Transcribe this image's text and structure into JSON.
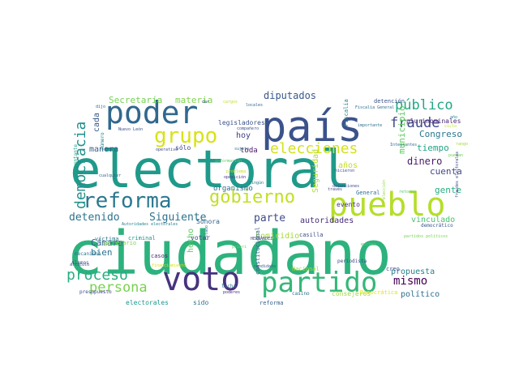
{
  "words": [
    {
      "text": "ciudadano",
      "color": "#2db27d"
    },
    {
      "text": "electoral",
      "color": "#1f9a8a"
    },
    {
      "text": "país",
      "color": "#3b528b"
    },
    {
      "text": "pueblo",
      "color": "#b5de2b"
    },
    {
      "text": "poder",
      "color": "#31688e"
    },
    {
      "text": "voto",
      "color": "#46337e"
    },
    {
      "text": "partido",
      "color": "#35b779"
    },
    {
      "text": "reforma",
      "color": "#2a788e"
    },
    {
      "text": "gobierno",
      "color": "#c2df23"
    },
    {
      "text": "grupo",
      "color": "#d8e219"
    },
    {
      "text": "democracia",
      "color": "#21918c"
    },
    {
      "text": "fraude",
      "color": "#3e4989"
    },
    {
      "text": "público",
      "color": "#22a884"
    },
    {
      "text": "elecciones",
      "color": "#d2e21b"
    },
    {
      "text": "proceso",
      "color": "#27ad81"
    },
    {
      "text": "persona",
      "color": "#7ad151"
    },
    {
      "text": "Siguiente",
      "color": "#2c728e"
    },
    {
      "text": "detenido",
      "color": "#2c728e"
    },
    {
      "text": "parte",
      "color": "#3e4c8a"
    },
    {
      "text": "diputados",
      "color": "#38588c"
    },
    {
      "text": "mismo",
      "color": "#440154"
    },
    {
      "text": "municipio",
      "color": "#5ec962"
    },
    {
      "text": "Secretaría",
      "color": "#77d153"
    },
    {
      "text": "materia",
      "color": "#7fd34e"
    },
    {
      "text": "Congreso",
      "color": "#2a778e"
    },
    {
      "text": "tiempo",
      "color": "#20a386"
    },
    {
      "text": "dinero",
      "color": "#481a6c"
    },
    {
      "text": "cuenta",
      "color": "#3f4788"
    },
    {
      "text": "gente",
      "color": "#28ae80"
    },
    {
      "text": "homicidio",
      "color": "#a5db36"
    },
    {
      "text": "autoridades",
      "color": "#472d7b"
    },
    {
      "text": "vinculado",
      "color": "#4ac16d"
    },
    {
      "text": "propuesta",
      "color": "#26828e"
    },
    {
      "text": "político",
      "color": "#2d708e"
    },
    {
      "text": "Cámara",
      "color": "#365c8d"
    },
    {
      "text": "bien",
      "color": "#2c728e"
    },
    {
      "text": "hecho",
      "color": "#5ec962"
    },
    {
      "text": "manera",
      "color": "#355f8d"
    },
    {
      "text": "cada",
      "color": "#38588c"
    },
    {
      "text": "hoy",
      "color": "#433e85"
    },
    {
      "text": "toda",
      "color": "#471365"
    },
    {
      "text": "legisladores",
      "color": "#3b528b"
    },
    {
      "text": "plurinominales",
      "color": "#482677"
    },
    {
      "text": "detención",
      "color": "#3b528b"
    },
    {
      "text": "Seguridad",
      "color": "#b8de29"
    },
    {
      "text": "años",
      "color": "#c0df25"
    },
    {
      "text": "organismo",
      "color": "#2e6f8e"
    },
    {
      "text": "evento",
      "color": "#46327e"
    },
    {
      "text": "General",
      "color": "#2d708e"
    },
    {
      "text": "casilla",
      "color": "#3f4788"
    },
    {
      "text": "Sonora",
      "color": "#33638d"
    },
    {
      "text": "votar",
      "color": "#414487"
    },
    {
      "text": "sólo",
      "color": "#3e4a89"
    },
    {
      "text": "criminal",
      "color": "#20928c"
    },
    {
      "text": "víctima",
      "color": "#2a788e"
    },
    {
      "text": "secretario",
      "color": "#7ad151"
    },
    {
      "text": "mecanismo",
      "color": "#2a788e"
    },
    {
      "text": "electorales",
      "color": "#1f988b"
    },
    {
      "text": "sido",
      "color": "#2c718e"
    },
    {
      "text": "consejeros",
      "color": "#9fda3a"
    },
    {
      "text": "Nacional",
      "color": "#a0da39"
    },
    {
      "text": "creo",
      "color": "#3d4e8a"
    },
    {
      "text": "casos",
      "color": "#482475"
    },
    {
      "text": "constitucional",
      "color": "#34618d"
    },
    {
      "text": "reforma",
      "color": "#34618d"
    },
    {
      "text": "Democrática",
      "color": "#e1e418"
    },
    {
      "text": "casino",
      "color": "#2d708e"
    },
    {
      "text": "periodista",
      "color": "#3e4a89"
    },
    {
      "text": "Fiscalía",
      "color": "#25858e"
    },
    {
      "text": "Fiscalía General",
      "color": "#2e6e8e"
    },
    {
      "text": "elección",
      "color": "#90d743"
    },
    {
      "text": "democrático",
      "color": "#39568c"
    },
    {
      "text": "representante",
      "color": "#1fa088"
    },
    {
      "text": "Álamos",
      "color": "#3a548c"
    },
    {
      "text": "cualquier",
      "color": "#32658e"
    },
    {
      "text": "Nuevo León",
      "color": "#3b528b"
    },
    {
      "text": "dijo",
      "color": "#2f6c8e"
    },
    {
      "text": "número",
      "color": "#25848e"
    },
    {
      "text": "operativo",
      "color": "#404688"
    },
    {
      "text": "dar",
      "color": "#3d4d8a"
    },
    {
      "text": "locales",
      "color": "#30678e"
    },
    {
      "text": "compañero",
      "color": "#3b528b"
    },
    {
      "text": "sujeto",
      "color": "#2c738e"
    },
    {
      "text": "información",
      "color": "#5cc863"
    },
    {
      "text": "problema",
      "color": "#c8e020"
    },
    {
      "text": "oposición",
      "color": "#46307e"
    },
    {
      "text": "ningún",
      "color": "#2a788e"
    },
    {
      "text": "importante",
      "color": "#2c728e"
    },
    {
      "text": "hicieron",
      "color": "#3e4989"
    },
    {
      "text": "Integrantes",
      "color": "#2e6e8e"
    },
    {
      "text": "través",
      "color": "#414487"
    },
    {
      "text": "detenciones",
      "color": "#3f4788"
    },
    {
      "text": "retorno",
      "color": "#52c569"
    },
    {
      "text": "puedan",
      "color": "#70cf57"
    },
    {
      "text": "fraudes electorales",
      "color": "#3e4a89"
    },
    {
      "text": "Autoridades electorales",
      "color": "#25838e"
    },
    {
      "text": "artículo",
      "color": "#3e4c8a"
    },
    {
      "text": "presupuesto",
      "color": "#3f4889"
    },
    {
      "text": "financiamiento",
      "color": "#d8e219"
    },
    {
      "text": "lucha",
      "color": "#2e6e8e"
    },
    {
      "text": "poderes",
      "color": "#472c7a"
    },
    {
      "text": "candidato",
      "color": "#3b528b"
    },
    {
      "text": "HERNÁNDEZ",
      "color": "#3f4788"
    },
    {
      "text": "priori",
      "color": "#7ad151"
    },
    {
      "text": "encima",
      "color": "#5ec962"
    },
    {
      "text": "partidos políticos",
      "color": "#77d153"
    },
    {
      "text": "Estado",
      "color": "#2c728e"
    },
    {
      "text": "cargos",
      "color": "#bddf26"
    },
    {
      "text": "rango",
      "color": "#a2da37"
    },
    {
      "text": "ciclo",
      "color": "#bade28"
    },
    {
      "text": "año",
      "color": "#26828e"
    }
  ]
}
